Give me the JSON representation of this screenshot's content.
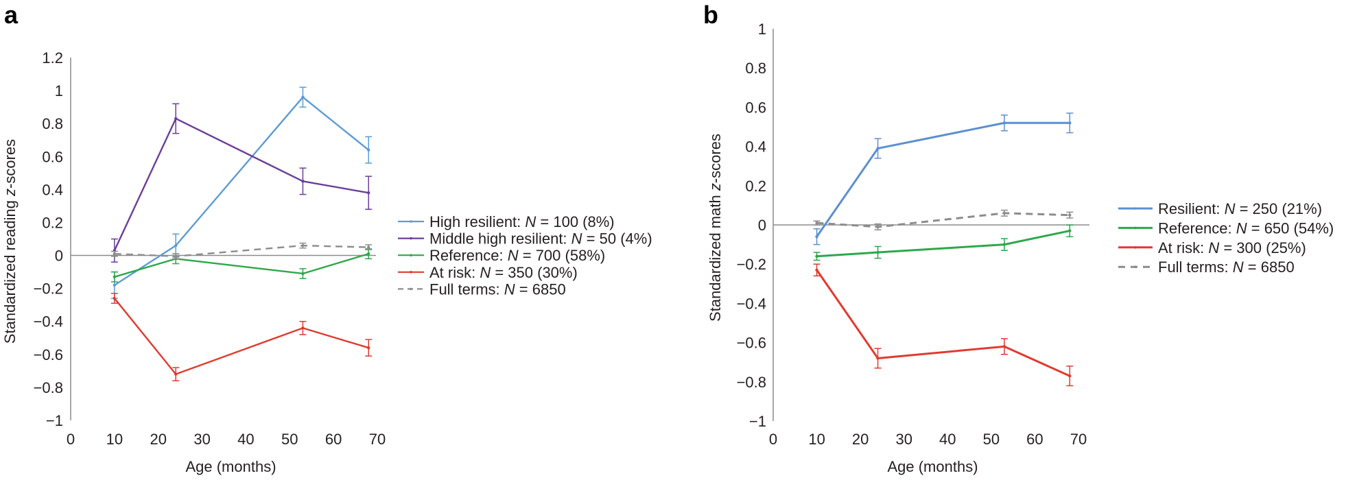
{
  "chart_data": [
    {
      "type": "line",
      "panel_label": "a",
      "title": "",
      "xlabel": "Age (months)",
      "ylabel_prefix": "Standardized reading ",
      "ylabel_italic": "z",
      "ylabel_suffix": "-scores",
      "xlim": [
        0,
        70
      ],
      "ylim": [
        -1,
        1.2
      ],
      "xticks": [
        0,
        10,
        20,
        30,
        40,
        50,
        60,
        70
      ],
      "yticks": [
        1.2,
        1,
        0.8,
        0.6,
        0.4,
        0.2,
        0,
        -0.2,
        -0.4,
        -0.6,
        -0.8,
        -1
      ],
      "ytick_labels": [
        "1.2",
        "1",
        "0.8",
        "0.6",
        "0.4",
        "0.2",
        "0",
        "−0.2",
        "−0.4",
        "−0.6",
        "−0.8",
        "−1"
      ],
      "grid": false,
      "reference_line_y": 0,
      "legend_position": "right",
      "x": [
        10,
        24,
        53,
        68
      ],
      "series": [
        {
          "name": "High resilient",
          "legend_prefix": "High resilient: ",
          "legend_N": "N",
          "legend_suffix": " = 100 (8%)",
          "color": "#5b9bd5",
          "dashed": false,
          "values": [
            -0.18,
            0.06,
            0.96,
            0.64
          ],
          "errors": [
            0.08,
            0.07,
            0.06,
            0.08
          ]
        },
        {
          "name": "Middle high resilient",
          "legend_prefix": "Middle high resilient: ",
          "legend_N": "N",
          "legend_suffix": " = 50 (4%)",
          "color": "#6a3d9a",
          "dashed": false,
          "values": [
            0.03,
            0.83,
            0.45,
            0.38
          ],
          "errors": [
            0.07,
            0.09,
            0.08,
            0.1
          ]
        },
        {
          "name": "Reference",
          "legend_prefix": "Reference: ",
          "legend_N": "N",
          "legend_suffix": " = 700 (58%)",
          "color": "#2ca84a",
          "dashed": false,
          "values": [
            -0.13,
            -0.02,
            -0.11,
            0.01
          ],
          "errors": [
            0.03,
            0.03,
            0.03,
            0.03
          ]
        },
        {
          "name": "At risk",
          "legend_prefix": "At risk: ",
          "legend_N": "N",
          "legend_suffix": " = 350 (30%)",
          "color": "#e03a2f",
          "dashed": false,
          "values": [
            -0.26,
            -0.72,
            -0.44,
            -0.56
          ],
          "errors": [
            0.03,
            0.04,
            0.04,
            0.05
          ]
        },
        {
          "name": "Full terms",
          "legend_prefix": "Full terms: ",
          "legend_N": "N",
          "legend_suffix": " = 6850",
          "color": "#8c8c8c",
          "dashed": true,
          "values": [
            0.01,
            -0.005,
            0.06,
            0.05
          ],
          "errors": [
            0.015,
            0.015,
            0.015,
            0.015
          ]
        }
      ]
    },
    {
      "type": "line",
      "panel_label": "b",
      "title": "",
      "xlabel": "Age (months)",
      "ylabel_prefix": "Standardized math ",
      "ylabel_italic": "z",
      "ylabel_suffix": "-scores",
      "xlim": [
        0,
        70
      ],
      "ylim": [
        -1,
        1
      ],
      "xticks": [
        0,
        10,
        20,
        30,
        40,
        50,
        60,
        70
      ],
      "yticks": [
        1,
        0.8,
        0.6,
        0.4,
        0.2,
        0,
        -0.2,
        -0.4,
        -0.6,
        -0.8,
        -1
      ],
      "ytick_labels": [
        "1",
        "0.8",
        "0.6",
        "0.4",
        "0.2",
        "0",
        "−0.2",
        "−0.4",
        "−0.6",
        "−0.8",
        "−1"
      ],
      "grid": false,
      "reference_line_y": 0,
      "legend_position": "right",
      "x": [
        10,
        24,
        53,
        68
      ],
      "series": [
        {
          "name": "Resilient",
          "legend_prefix": "Resilient: ",
          "legend_N": "N",
          "legend_suffix": " = 250 (21%)",
          "color": "#5b8fd0",
          "dashed": false,
          "values": [
            -0.06,
            0.39,
            0.52,
            0.52
          ],
          "errors": [
            0.04,
            0.05,
            0.04,
            0.05
          ]
        },
        {
          "name": "Reference",
          "legend_prefix": "Reference: ",
          "legend_N": "N",
          "legend_suffix": " = 650 (54%)",
          "color": "#2ca84a",
          "dashed": false,
          "values": [
            -0.16,
            -0.14,
            -0.1,
            -0.03
          ],
          "errors": [
            0.02,
            0.03,
            0.03,
            0.03
          ]
        },
        {
          "name": "At risk",
          "legend_prefix": "At risk: ",
          "legend_N": "N",
          "legend_suffix": " = 300 (25%)",
          "color": "#e03a2f",
          "dashed": false,
          "values": [
            -0.23,
            -0.68,
            -0.62,
            -0.77
          ],
          "errors": [
            0.03,
            0.05,
            0.04,
            0.05
          ]
        },
        {
          "name": "Full terms",
          "legend_prefix": "Full terms: ",
          "legend_N": "N",
          "legend_suffix": " = 6850",
          "color": "#8c8c8c",
          "dashed": true,
          "values": [
            0.01,
            -0.01,
            0.06,
            0.05
          ],
          "errors": [
            0.01,
            0.015,
            0.015,
            0.015
          ]
        }
      ]
    }
  ]
}
